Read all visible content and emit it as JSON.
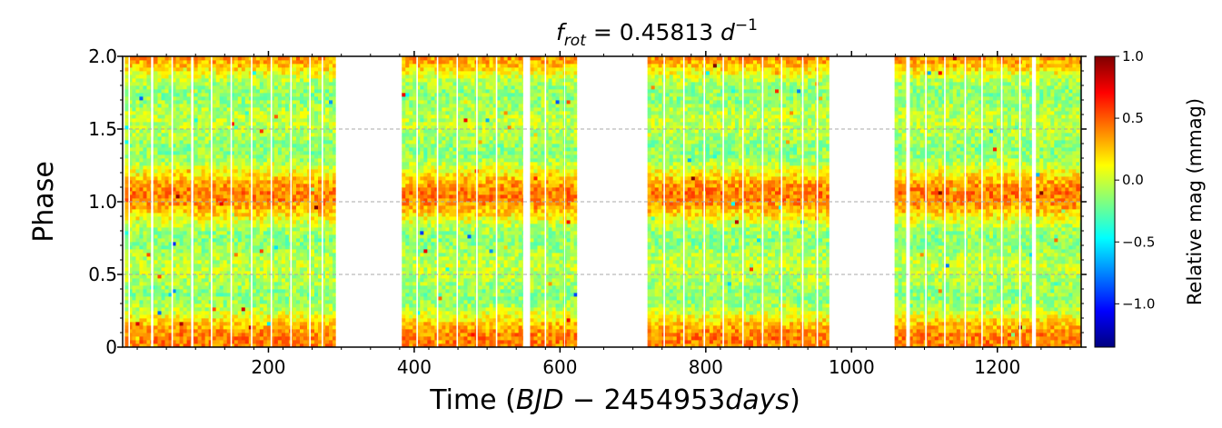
{
  "chart_data": {
    "type": "heatmap",
    "title": {
      "prefix": "f",
      "subscript": "rot",
      "equals": " = 0.45813 ",
      "unit": "d",
      "superscript": "−1"
    },
    "xlabel": {
      "prefix": "Time (",
      "italic": "BJD",
      "middle": " − 2454953",
      "italic2": "days",
      "suffix": ")"
    },
    "ylabel": "Phase",
    "xlim": [
      0,
      1315
    ],
    "ylim": [
      0,
      2.0
    ],
    "x_ticks": [
      200,
      400,
      600,
      800,
      1000,
      1200
    ],
    "x_tick_labels": [
      "200",
      "400",
      "600",
      "800",
      "1000",
      "1200"
    ],
    "y_ticks": [
      0,
      0.5,
      1.0,
      1.5,
      2.0
    ],
    "y_tick_labels": [
      "0",
      "0.5",
      "1.0",
      "1.5",
      "2.0"
    ],
    "y_gridlines": [
      0.5,
      1.0,
      1.5
    ],
    "grid": "dashed horizontal at phase 0.5, 1.0, 1.5",
    "data_segments_days": [
      [
        3,
        292
      ],
      [
        383,
        549
      ],
      [
        559,
        623
      ],
      [
        720,
        969
      ],
      [
        1059,
        1247
      ],
      [
        1253,
        1315
      ]
    ],
    "internal_gaps_days": [
      [
        8,
        10
      ],
      [
        39,
        42
      ],
      [
        67,
        69
      ],
      [
        94,
        97
      ],
      [
        121,
        123
      ],
      [
        148,
        150
      ],
      [
        176,
        178
      ],
      [
        203,
        205
      ],
      [
        230,
        232
      ],
      [
        256,
        258
      ],
      [
        273,
        275
      ],
      [
        403,
        405
      ],
      [
        431,
        433
      ],
      [
        458,
        460
      ],
      [
        485,
        487
      ],
      [
        512,
        514
      ],
      [
        579,
        581
      ],
      [
        606,
        607
      ],
      [
        742,
        744
      ],
      [
        769,
        771
      ],
      [
        797,
        799
      ],
      [
        823,
        825
      ],
      [
        850,
        852
      ],
      [
        877,
        879
      ],
      [
        903,
        905
      ],
      [
        932,
        934
      ],
      [
        952,
        954
      ],
      [
        1075,
        1080
      ],
      [
        1101,
        1103
      ],
      [
        1127,
        1129
      ],
      [
        1155,
        1157
      ],
      [
        1178,
        1180
      ],
      [
        1205,
        1207
      ],
      [
        1230,
        1232
      ]
    ],
    "phase_pattern": {
      "description": "Two rotation cycles shown; relative mag low (cyan) near phase 0.3 and 1.3, high (yellow-orange) near phase 0.05, 0.55, 1.05, 1.55",
      "mean_amplitude_mmag": 0.35
    },
    "colorbar": {
      "label": "Relative mag (mmag)",
      "range": [
        -1.35,
        1.0
      ],
      "ticks": [
        1.0,
        0.5,
        0.0,
        -0.5,
        -1.0
      ],
      "tick_labels": [
        "1.0",
        "0.5",
        "0.0",
        "−0.5",
        "−1.0"
      ],
      "colormap": "jet"
    }
  }
}
